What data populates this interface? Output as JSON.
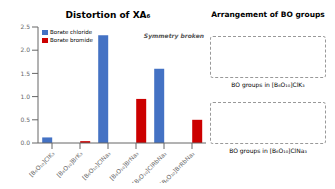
{
  "chart_data": {
    "type": "bar",
    "title": "Distortion of XA₆",
    "categories": [
      "[B₆O₁₀]ClK₃",
      "[B₆O₁₀]BrK₃",
      "[B₆O₁₀]ClNa₃",
      "[B₆O₁₀]BrNa₃",
      "[B₆O₁₀]ClRbNa₂",
      "[B₆O₁₀]BrRbNa₂"
    ],
    "series": [
      {
        "name": "Borate chloride",
        "color": "#4472C4",
        "values": [
          0.12,
          0.0,
          2.32,
          0.0,
          1.6,
          0.0
        ]
      },
      {
        "name": "Borate bromide",
        "color": "#CC0000",
        "values": [
          0.0,
          0.04,
          0.0,
          0.95,
          0.0,
          0.5
        ]
      }
    ],
    "ylim": [
      0,
      2.5
    ],
    "yticks": [
      {
        "value": 0,
        "label": "0.0"
      },
      0.5,
      {
        "value": 1.0,
        "label": "1.0"
      },
      1.5,
      {
        "value": 2.0,
        "label": "2.0"
      },
      2.5
    ],
    "grid": false,
    "legend": "upper left",
    "annotations": [
      "Symmetry broken",
      "Arrangement of BO groups",
      "BO groups in [B₆O₁₀]ClK₃",
      "BO groups in [B₆O₁₀]ClNa₃"
    ]
  }
}
